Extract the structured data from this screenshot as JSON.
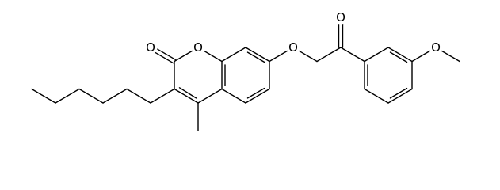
{
  "atoms": {
    "carbonyl_oxygen": "O",
    "ring_oxygen": "O",
    "ether_oxygen": "O",
    "ketone_oxygen": "O",
    "methoxy_oxygen": "O"
  }
}
